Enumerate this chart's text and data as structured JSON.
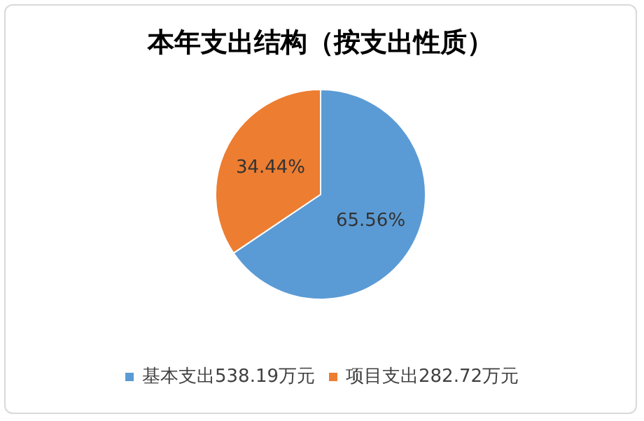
{
  "chart_data": {
    "type": "pie",
    "title": "本年支出结构（按支出性质）",
    "categories": [
      "基本支出538.19万元",
      "项目支出282.72万元"
    ],
    "values": [
      65.56,
      34.44
    ],
    "colors": [
      "#5b9bd5",
      "#ed7d31"
    ],
    "value_labels": [
      "65.56%",
      "34.44%"
    ],
    "legend": "bottom"
  }
}
